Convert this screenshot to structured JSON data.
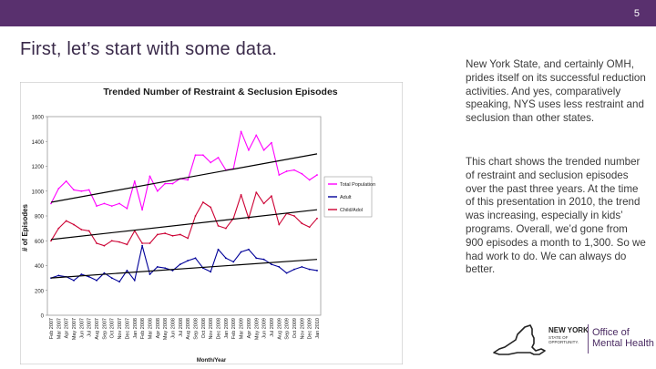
{
  "slide": {
    "page_number": "5",
    "title": "First, let’s start with some data.",
    "paragraph_1": "New York State, and certainly OMH, prides itself on its successful reduction activities. And yes, comparatively speaking, NYS uses less restraint and seclusion than other states.",
    "paragraph_2": "This chart shows the trended number of restraint and seclusion episodes over the past three years. At the time of this presentation in 2010, the trend was increasing, especially in kids’ programs. Overall, we’d gone from 900 episodes a month to 1,300. So we had work to do. We can always do better.",
    "logo": {
      "state_line_1": "NEW YORK",
      "state_line_2": "STATE OF OPPORTUNITY.",
      "office_line_1": "Office of",
      "office_line_2": "Mental Health"
    },
    "colors": {
      "bar": "#59306e",
      "total": "#ff00ff",
      "adult": "#000099",
      "child": "#cc0033",
      "trend": "#000000",
      "plot_bg": "#ffffff"
    }
  },
  "chart_data": {
    "type": "line",
    "title": "Trended Number of Restraint & Seclusion Episodes",
    "xlabel": "Month/Year",
    "ylabel": "# of Episodes",
    "ylim": [
      0,
      1600
    ],
    "yticks": [
      0,
      200,
      400,
      600,
      800,
      1000,
      1200,
      1400,
      1600
    ],
    "legend_position": "right",
    "grid": false,
    "categories": [
      "Feb 2007",
      "Mar 2007",
      "Apr 2007",
      "May 2007",
      "Jun 2007",
      "Jul 2007",
      "Aug 2007",
      "Sep 2007",
      "Oct 2007",
      "Nov 2007",
      "Dec 2007",
      "Jan 2008",
      "Feb 2008",
      "Mar 2008",
      "Apr 2008",
      "May 2008",
      "Jun 2008",
      "Jul 2008",
      "Aug 2008",
      "Sep 2008",
      "Oct 2008",
      "Nov 2008",
      "Dec 2008",
      "Jan 2009",
      "Feb 2009",
      "Mar 2009",
      "Apr 2009",
      "May 2009",
      "Jun 2009",
      "Jul 2009",
      "Aug 2009",
      "Sep 2009",
      "Oct 2009",
      "Nov 2009",
      "Dec 2009",
      "Jan 2010"
    ],
    "series": [
      {
        "name": "Total Population",
        "color": "#ff00ff",
        "values": [
          900,
          1020,
          1080,
          1010,
          1000,
          1010,
          880,
          900,
          880,
          900,
          860,
          1080,
          850,
          1120,
          1000,
          1060,
          1060,
          1100,
          1090,
          1290,
          1290,
          1230,
          1270,
          1170,
          1180,
          1480,
          1330,
          1450,
          1330,
          1390,
          1130,
          1160,
          1170,
          1140,
          1090,
          1130
        ],
        "trend": [
          910,
          1300
        ]
      },
      {
        "name": "Adult",
        "color": "#000099",
        "values": [
          300,
          320,
          310,
          280,
          330,
          310,
          280,
          340,
          300,
          270,
          360,
          280,
          560,
          330,
          390,
          380,
          360,
          410,
          440,
          460,
          380,
          350,
          530,
          460,
          430,
          510,
          530,
          460,
          450,
          410,
          390,
          340,
          370,
          390,
          370,
          360
        ],
        "trend": [
          300,
          450
        ]
      },
      {
        "name": "Child/Adol",
        "color": "#cc0033",
        "values": [
          600,
          700,
          760,
          730,
          690,
          680,
          580,
          560,
          600,
          590,
          570,
          680,
          580,
          580,
          650,
          660,
          640,
          650,
          620,
          800,
          910,
          870,
          720,
          700,
          780,
          970,
          780,
          990,
          900,
          960,
          730,
          820,
          800,
          740,
          710,
          780
        ],
        "trend": [
          610,
          850
        ]
      }
    ]
  }
}
